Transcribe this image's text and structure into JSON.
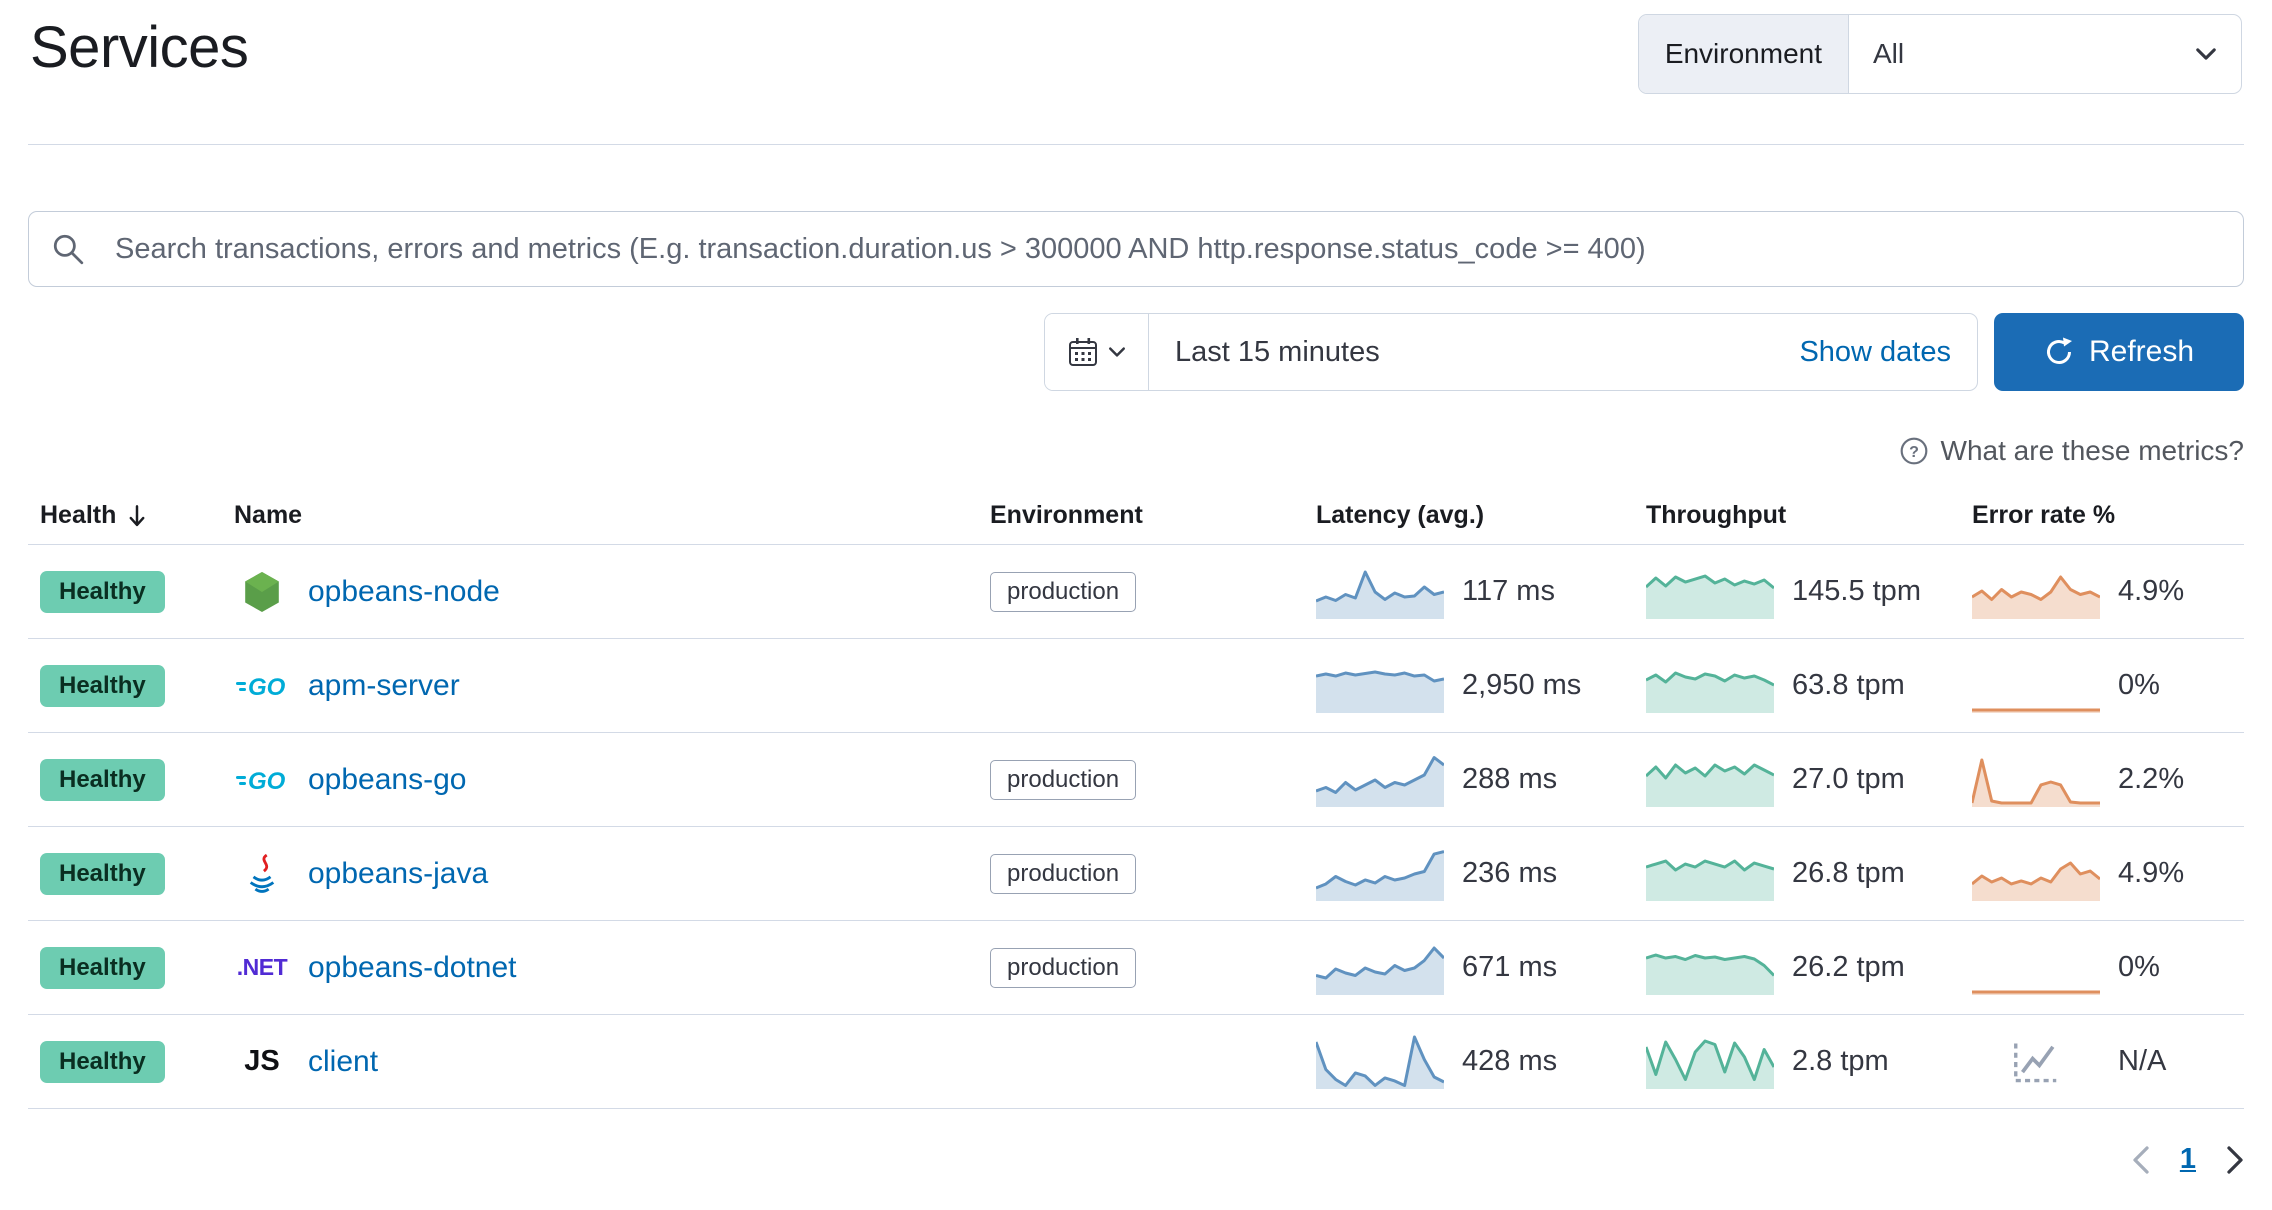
{
  "page": {
    "title": "Services"
  },
  "env_filter": {
    "label": "Environment",
    "value": "All"
  },
  "search": {
    "placeholder": "Search transactions, errors and metrics (E.g. transaction.duration.us > 300000 AND http.response.status_code >= 400)"
  },
  "datepicker": {
    "duration": "Last 15 minutes",
    "show_dates": "Show dates",
    "refresh": "Refresh"
  },
  "metrics_help": {
    "text": "What are these metrics?"
  },
  "table": {
    "headers": {
      "health": "Health",
      "name": "Name",
      "environment": "Environment",
      "latency": "Latency (avg.)",
      "throughput": "Throughput",
      "error_rate": "Error rate %"
    },
    "rows": [
      {
        "health": "Healthy",
        "name": "opbeans-node",
        "agent_icon": "nodejs-icon",
        "environment": "production",
        "latency": "117 ms",
        "latency_spark": [
          32,
          40,
          33,
          45,
          38,
          90,
          50,
          35,
          48,
          40,
          42,
          60,
          45,
          50
        ],
        "throughput": "145.5 tpm",
        "throughput_spark": [
          60,
          78,
          62,
          80,
          70,
          76,
          82,
          68,
          76,
          64,
          72,
          66,
          74,
          58
        ],
        "error_rate": "4.9%",
        "error_spark": [
          40,
          52,
          35,
          55,
          40,
          50,
          45,
          35,
          50,
          80,
          55,
          45,
          50,
          40
        ]
      },
      {
        "health": "Healthy",
        "name": "apm-server",
        "agent_icon": "go-icon",
        "environment": "",
        "latency": "2,950 ms",
        "latency_spark": [
          70,
          74,
          70,
          76,
          72,
          75,
          78,
          74,
          72,
          76,
          70,
          72,
          60,
          64
        ],
        "throughput": "63.8 tpm",
        "throughput_spark": [
          62,
          72,
          58,
          76,
          68,
          64,
          74,
          70,
          60,
          72,
          66,
          70,
          62,
          52
        ],
        "error_rate": "0%",
        "error_spark": [
          2,
          2,
          2,
          2,
          2,
          2,
          2,
          2,
          2,
          2,
          2,
          2,
          2,
          2
        ]
      },
      {
        "health": "Healthy",
        "name": "opbeans-go",
        "agent_icon": "go-icon",
        "environment": "production",
        "latency": "288 ms",
        "latency_spark": [
          28,
          35,
          25,
          45,
          30,
          40,
          50,
          35,
          45,
          40,
          50,
          60,
          95,
          80
        ],
        "throughput": "27.0 tpm",
        "throughput_spark": [
          58,
          76,
          54,
          80,
          64,
          74,
          58,
          80,
          68,
          76,
          62,
          80,
          70,
          60
        ],
        "error_rate": "2.2%",
        "error_spark": [
          4,
          90,
          8,
          4,
          4,
          4,
          4,
          40,
          46,
          40,
          6,
          4,
          4,
          4
        ]
      },
      {
        "health": "Healthy",
        "name": "opbeans-java",
        "agent_icon": "java-icon",
        "environment": "production",
        "latency": "236 ms",
        "latency_spark": [
          22,
          30,
          45,
          35,
          28,
          38,
          32,
          45,
          38,
          42,
          50,
          55,
          90,
          95
        ],
        "throughput": "26.8 tpm",
        "throughput_spark": [
          64,
          70,
          76,
          58,
          70,
          64,
          76,
          70,
          64,
          76,
          58,
          72,
          66,
          60
        ],
        "error_rate": "4.9%",
        "error_spark": [
          30,
          46,
          34,
          42,
          30,
          36,
          30,
          42,
          34,
          60,
          72,
          50,
          56,
          40
        ]
      },
      {
        "health": "Healthy",
        "name": "opbeans-dotnet",
        "agent_icon": "dotnet-icon",
        "environment": "production",
        "latency": "671 ms",
        "latency_spark": [
          35,
          30,
          48,
          40,
          35,
          50,
          42,
          38,
          55,
          45,
          50,
          65,
          90,
          70
        ],
        "throughput": "26.2 tpm",
        "throughput_spark": [
          70,
          76,
          70,
          73,
          67,
          75,
          70,
          72,
          67,
          70,
          73,
          68,
          55,
          35
        ],
        "error_rate": "0%",
        "error_spark": [
          2,
          2,
          2,
          2,
          2,
          2,
          2,
          2,
          2,
          2,
          2,
          2,
          2,
          2
        ]
      },
      {
        "health": "Healthy",
        "name": "client",
        "agent_icon": "js-icon",
        "environment": "",
        "latency": "428 ms",
        "latency_spark": [
          90,
          35,
          15,
          3,
          28,
          22,
          3,
          18,
          12,
          3,
          100,
          55,
          20,
          10
        ],
        "throughput": "2.8 tpm",
        "throughput_spark": [
          80,
          25,
          90,
          55,
          15,
          70,
          92,
          85,
          30,
          88,
          60,
          15,
          75,
          40
        ],
        "error_rate": "N/A",
        "error_spark": null
      }
    ]
  },
  "pagination": {
    "prev": "chevron-left",
    "page": "1",
    "next": "chevron-right"
  },
  "colors": {
    "link": "#0067b0",
    "primary_button": "#1b6cb5",
    "health_badge": "#6dccb1",
    "latency_line": "#6092c0",
    "latency_fill": "rgba(96,146,192,0.28)",
    "throughput_line": "#54b399",
    "throughput_fill": "rgba(84,179,153,0.28)",
    "error_line": "#df8f5e",
    "error_fill": "rgba(223,143,94,0.30)",
    "placeholder_icon": "#98a2b3"
  },
  "icons": {
    "search": "magnifier",
    "calendar": "calendar",
    "chevron_down": "chevron-down",
    "refresh": "circular-arrow",
    "help": "question-in-circle",
    "sort": "arrow-down",
    "dotnet_glyph": ".NET",
    "js_glyph": "JS"
  }
}
